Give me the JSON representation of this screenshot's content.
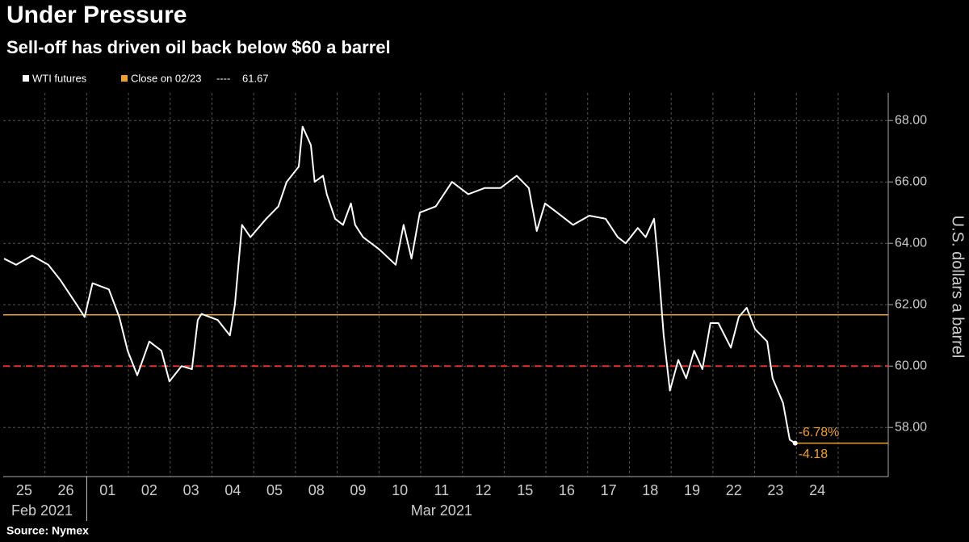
{
  "chart_data": {
    "type": "line",
    "title": "Under Pressure",
    "subtitle": "Sell-off has driven oil back below $60 a barrel",
    "y_label": "U.S. dollars a barrel",
    "source": "Source: Nymex",
    "series": [
      {
        "name": "WTI futures",
        "color": "#ffffff",
        "x": [
          -0.48,
          -0.19,
          0.19,
          0.58,
          0.87,
          1.26,
          1.45,
          1.64,
          2.03,
          2.28,
          2.48,
          2.71,
          3.0,
          3.29,
          3.48,
          3.77,
          4.02,
          4.16,
          4.25,
          4.64,
          4.93,
          5.05,
          5.22,
          5.42,
          5.8,
          6.09,
          6.29,
          6.58,
          6.67,
          6.87,
          6.96,
          7.16,
          7.25,
          7.45,
          7.64,
          7.83,
          7.93,
          8.12,
          8.51,
          8.9,
          9.09,
          9.28,
          9.48,
          9.86,
          10.25,
          10.64,
          11.03,
          11.41,
          11.8,
          12.09,
          12.28,
          12.48,
          12.77,
          13.15,
          13.54,
          13.93,
          14.22,
          14.41,
          14.7,
          14.89,
          15.09,
          15.18,
          15.32,
          15.47,
          15.67,
          15.86,
          16.05,
          16.25,
          16.44,
          16.63,
          16.93,
          17.12,
          17.31,
          17.51,
          17.8,
          17.93,
          18.18,
          18.34,
          18.47
        ],
        "values": [
          63.5,
          63.3,
          63.6,
          63.3,
          62.8,
          62.0,
          61.6,
          62.7,
          62.5,
          61.6,
          60.5,
          59.7,
          60.8,
          60.5,
          59.5,
          60.0,
          59.9,
          61.5,
          61.7,
          61.5,
          61.0,
          62.0,
          64.6,
          64.2,
          64.8,
          65.2,
          66.0,
          66.5,
          67.8,
          67.2,
          66.0,
          66.2,
          65.6,
          64.8,
          64.6,
          65.3,
          64.6,
          64.2,
          63.8,
          63.3,
          64.6,
          63.5,
          65.0,
          65.2,
          66.0,
          65.6,
          65.8,
          65.8,
          66.2,
          65.8,
          64.4,
          65.3,
          65.0,
          64.6,
          64.9,
          64.8,
          64.2,
          64.0,
          64.5,
          64.2,
          64.8,
          63.5,
          61.0,
          59.2,
          60.2,
          59.6,
          60.5,
          59.9,
          61.4,
          61.4,
          60.6,
          61.6,
          61.9,
          61.2,
          60.8,
          59.6,
          58.8,
          57.6,
          57.49
        ]
      }
    ],
    "reference_line": {
      "value": 60,
      "color": "#e0322e"
    },
    "close_line": {
      "name": "Close on 02/23",
      "value": 61.67,
      "color": "#f0a030"
    },
    "annotations": [
      {
        "text": "-6.78%",
        "color": "#f0a030"
      },
      {
        "text": "-4.18",
        "color": "#f0a030"
      }
    ],
    "xlim": [
      -0.5,
      20.7
    ],
    "xticks": [
      {
        "value": 0,
        "label": "25"
      },
      {
        "value": 1,
        "label": "26"
      },
      {
        "value": 2,
        "label": "01"
      },
      {
        "value": 3,
        "label": "02"
      },
      {
        "value": 4,
        "label": "03"
      },
      {
        "value": 5,
        "label": "04"
      },
      {
        "value": 6,
        "label": "05"
      },
      {
        "value": 7,
        "label": "08"
      },
      {
        "value": 8,
        "label": "09"
      },
      {
        "value": 9,
        "label": "10"
      },
      {
        "value": 10,
        "label": "11"
      },
      {
        "value": 11,
        "label": "12"
      },
      {
        "value": 12,
        "label": "15"
      },
      {
        "value": 13,
        "label": "16"
      },
      {
        "value": 14,
        "label": "17"
      },
      {
        "value": 15,
        "label": "18"
      },
      {
        "value": 16,
        "label": "19"
      },
      {
        "value": 17,
        "label": "22"
      },
      {
        "value": 18,
        "label": "23"
      },
      {
        "value": 19,
        "label": "24"
      }
    ],
    "x_groups": [
      {
        "label": "Feb 2021"
      },
      {
        "label": "Mar 2021"
      }
    ],
    "ylim": [
      56.4,
      68.9
    ],
    "yticks": [
      {
        "value": 58,
        "label": "58.00"
      },
      {
        "value": 60,
        "label": "60.00"
      },
      {
        "value": 62,
        "label": "62.00"
      },
      {
        "value": 64,
        "label": "64.00"
      },
      {
        "value": 66,
        "label": "66.00"
      },
      {
        "value": 68,
        "label": "68.00"
      }
    ],
    "grid": true
  }
}
